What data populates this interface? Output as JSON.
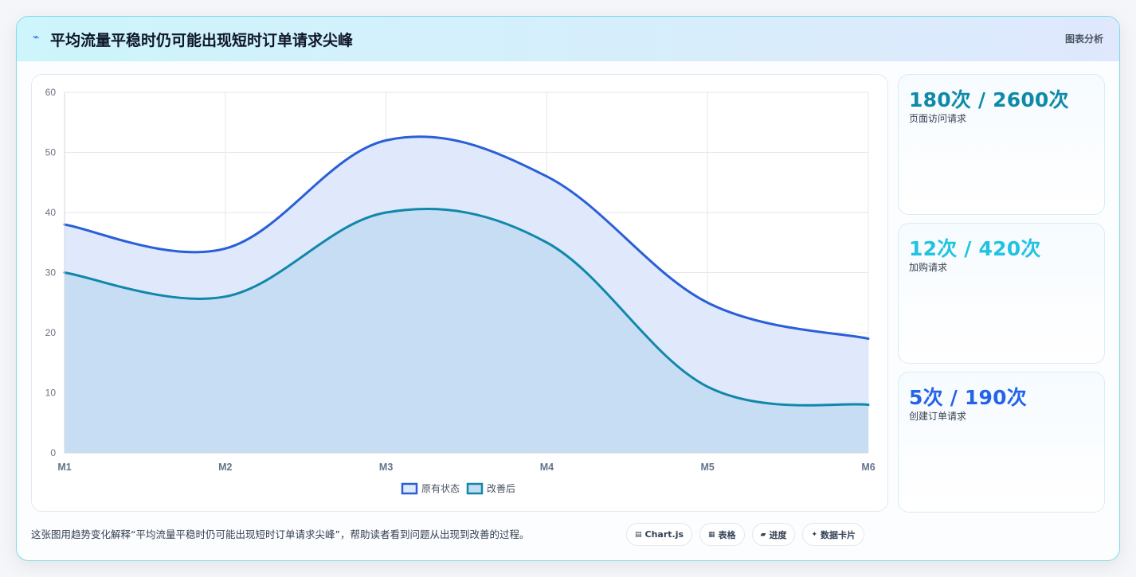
{
  "header": {
    "icon": "flash-icon",
    "title": "平均流量平稳时仍可能出现短时订单请求尖峰",
    "tag": "图表分析"
  },
  "stats": [
    {
      "value": "180次 / 2600次",
      "label": "页面访问请求",
      "color": "#0e8aa8"
    },
    {
      "value": "12次 / 420次",
      "label": "加购请求",
      "color": "#22c3e0"
    },
    {
      "value": "5次 / 190次",
      "label": "创建订单请求",
      "color": "#2563eb"
    }
  ],
  "caption": "这张图用趋势变化解释“平均流量平稳时仍可能出现短时订单请求尖峰”，帮助读者看到问题从出现到改善的过程。",
  "chips": [
    {
      "icon": "chart-icon",
      "label": "Chart.js"
    },
    {
      "icon": "table-icon",
      "label": "表格"
    },
    {
      "icon": "progress-icon",
      "label": "进度"
    },
    {
      "icon": "sparkle-icon",
      "label": "数据卡片"
    }
  ],
  "chart_data": {
    "type": "area",
    "categories": [
      "M1",
      "M2",
      "M3",
      "M4",
      "M5",
      "M6"
    ],
    "series": [
      {
        "name": "原有状态",
        "values": [
          38,
          34,
          52,
          46,
          25,
          19
        ],
        "color": "#2a5fd8",
        "fill": "#dfe9fb"
      },
      {
        "name": "改善后",
        "values": [
          30,
          26,
          40,
          35,
          11,
          8
        ],
        "color": "#1187ab",
        "fill": "#c4dcf2"
      }
    ],
    "yticks": [
      0,
      10,
      20,
      30,
      40,
      50,
      60
    ],
    "ylim": [
      0,
      60
    ],
    "grid": true,
    "legend_position": "bottom"
  }
}
